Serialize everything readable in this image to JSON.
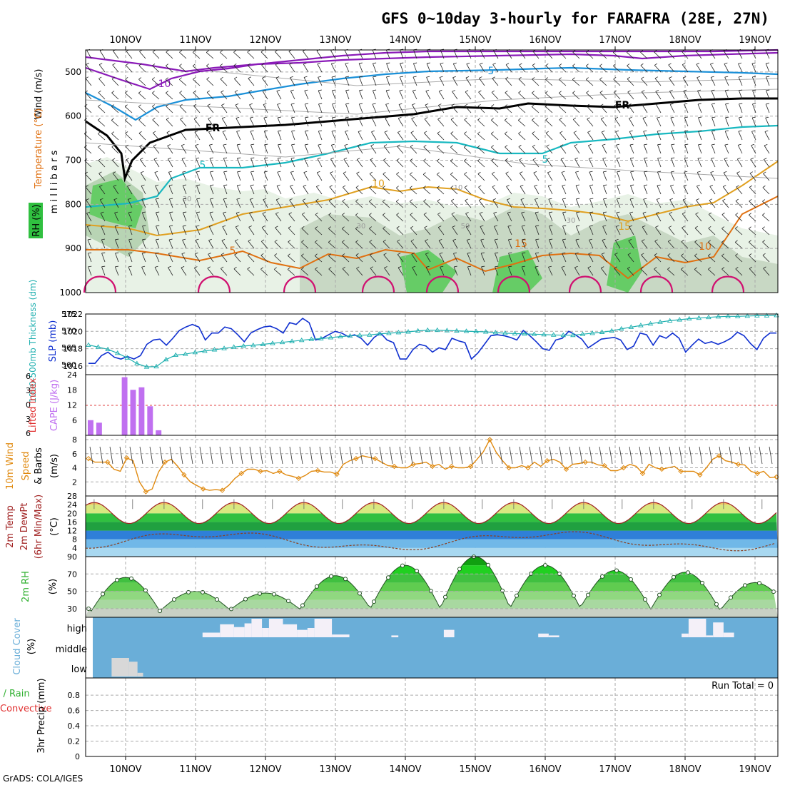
{
  "title": "GFS 0~10day 3-hourly for FARAFRA (28E, 27N)",
  "footer": "GrADS: COLA/IGES",
  "x_axis": {
    "labels": [
      "10NOV",
      "11NOV",
      "12NOV",
      "13NOV",
      "14NOV",
      "15NOV",
      "16NOV",
      "17NOV",
      "18NOV",
      "19NOV"
    ]
  },
  "colors": {
    "temp_cold": "#8a1ab8",
    "temp_cool": "#1a90d8",
    "temp_fr": "#000000",
    "temp_mid": "#18b8c0",
    "temp_warm": "#e0a020",
    "temp_hot": "#e07010",
    "temp_vhot": "#d01070",
    "slp": "#1030d0",
    "thickness": "#20b0b0",
    "cape": "#c070f0",
    "wind10": "#e08a10",
    "temp2m": "#a02020",
    "rh2m": "#30b030",
    "cloud": "#6aaed8"
  },
  "panels": {
    "upper": {
      "ylabels": [
        "Wind (m/s)",
        "Temperature (°C)",
        "m i l l i b a r s",
        "RH (%)"
      ],
      "yticks": [
        "500",
        "600",
        "700",
        "800",
        "900",
        "1000"
      ],
      "contour_labels": [
        "-10",
        "5",
        "FR",
        "FR",
        "5",
        "5",
        "10",
        "10",
        "5",
        "15",
        "10",
        "30",
        "30",
        "30",
        "50",
        "10"
      ]
    },
    "slp": {
      "ylabel_left": "1000-500mb Thickness (dm)",
      "ylabel_right": "SLP (mb)",
      "ticks_left": [
        "575",
        "570",
        "565",
        "560"
      ],
      "ticks_right": [
        "1022",
        "1020",
        "1018",
        "1016"
      ]
    },
    "cape": {
      "ylabel_left": "Lifted Index",
      "ylabel_right": "CAPE (J/kg)",
      "ticks_left": [
        "6",
        "3",
        "0",
        "3",
        "6"
      ],
      "ticks_right": [
        "24",
        "18",
        "12",
        "6"
      ]
    },
    "wind": {
      "ylabels": [
        "10m Wind",
        "Speed",
        "& Barbs",
        "(m/s)"
      ],
      "ticks": [
        "8",
        "6",
        "4",
        "2"
      ]
    },
    "temp": {
      "ylabels": [
        "2m Temp",
        "2m DewPt",
        "(6hr Min/Max)",
        "(°C)"
      ],
      "ticks": [
        "28",
        "24",
        "20",
        "16",
        "12",
        "8",
        "4"
      ]
    },
    "rh": {
      "ylabels": [
        "2m RH",
        "(%)"
      ],
      "ticks": [
        "90",
        "70",
        "50",
        "30"
      ]
    },
    "cloud": {
      "ylabels": [
        "Cloud Cover",
        "(%)"
      ],
      "levels": [
        "high",
        "middle",
        "low"
      ]
    },
    "precip": {
      "ylabels": [
        "Total / Rain",
        "Convective",
        "3hr Precip (mm)"
      ],
      "ticks": [
        "0.8",
        "0.6",
        "0.4",
        "0.2",
        "0"
      ],
      "run_total": "Run Total = 0"
    }
  },
  "chart_data": [
    {
      "type": "line",
      "name": "slp",
      "unit": "mb",
      "ylim": [
        1015,
        1022
      ],
      "values": [
        1016.3,
        1016.3,
        1017.2,
        1017.6,
        1017.0,
        1016.8,
        1017.1,
        1016.8,
        1017.2,
        1018.5,
        1019.0,
        1019.1,
        1018.4,
        1019.2,
        1020.1,
        1020.5,
        1020.8,
        1020.5,
        1019.0,
        1019.8,
        1019.8,
        1020.5,
        1020.3,
        1019.6,
        1018.8,
        1019.8,
        1020.2,
        1020.5,
        1020.6,
        1020.3,
        1019.8,
        1021.0,
        1020.8,
        1021.5,
        1021.0,
        1019.0,
        1019.2,
        1019.6,
        1020.0,
        1019.8,
        1019.4,
        1019.6,
        1019.2,
        1018.4,
        1019.3,
        1019.8,
        1019.0,
        1018.7,
        1016.8,
        1016.8,
        1017.9,
        1018.5,
        1018.3,
        1017.6,
        1018.1,
        1017.9,
        1019.2,
        1018.9,
        1018.7,
        1016.8,
        1017.5,
        1018.5,
        1019.5,
        1019.6,
        1019.5,
        1019.3,
        1019.0,
        1020.1,
        1019.5,
        1018.8,
        1018.0,
        1017.8,
        1019.0,
        1019.2,
        1020.0,
        1019.6,
        1019.1,
        1018.1,
        1018.6,
        1019.1,
        1019.2,
        1019.3,
        1019.0,
        1017.9,
        1018.3,
        1019.8,
        1019.6,
        1018.4,
        1019.5,
        1019.2,
        1019.8,
        1019.2,
        1017.6,
        1018.4,
        1019.1,
        1018.6,
        1018.8,
        1018.5,
        1018.8,
        1019.2,
        1019.9,
        1019.5,
        1018.6,
        1017.9,
        1019.2,
        1019.8,
        1019.8
      ]
    },
    {
      "type": "line",
      "name": "thickness",
      "unit": "dm",
      "ylim": [
        557,
        575
      ],
      "x_step": 1.5,
      "values": [
        565.8,
        565.2,
        564.5,
        563.4,
        562.0,
        560.3,
        559.3,
        559.4,
        561.5,
        562.8,
        563.1,
        563.6,
        564.0,
        564.4,
        564.8,
        565.2,
        565.5,
        565.7,
        566.0,
        566.3,
        566.6,
        566.9,
        567.2,
        567.5,
        567.7,
        568.0,
        568.3,
        568.5,
        568.7,
        568.8,
        569.1,
        569.3,
        569.5,
        569.7,
        570.0,
        570.2,
        570.2,
        570.1,
        570.0,
        569.9,
        569.8,
        569.7,
        569.5,
        569.3,
        569.2,
        569.1,
        569.0,
        568.9,
        568.8,
        568.7,
        568.7,
        569.0,
        569.3,
        569.6,
        570.0,
        570.6,
        571.1,
        571.6,
        572.1,
        572.6,
        573.0,
        573.3,
        573.6,
        573.8,
        574.0,
        574.2,
        574.3,
        574.3,
        574.4,
        574.5,
        574.5,
        574.6
      ]
    },
    {
      "type": "bar",
      "name": "cape",
      "unit": "J/kg",
      "ylim": [
        0,
        24
      ],
      "bars": [
        {
          "i": 0,
          "v": 6
        },
        {
          "i": 1,
          "v": 5
        },
        {
          "i": 4,
          "v": 23
        },
        {
          "i": 5,
          "v": 18
        },
        {
          "i": 6,
          "v": 19
        },
        {
          "i": 7,
          "v": 11.5
        },
        {
          "i": 8,
          "v": 2
        }
      ]
    },
    {
      "type": "line",
      "name": "wind10",
      "unit": "m/s",
      "ylim": [
        0,
        8
      ],
      "values": [
        5.3,
        4.8,
        4.8,
        4.8,
        3.8,
        3.5,
        5.4,
        5.0,
        2.0,
        0.6,
        1.0,
        3.4,
        4.8,
        5.2,
        4.2,
        3.0,
        2.0,
        1.5,
        1.0,
        0.8,
        0.9,
        0.8,
        1.5,
        2.5,
        3.2,
        3.8,
        3.8,
        3.5,
        3.6,
        3.2,
        3.5,
        3.0,
        2.8,
        2.5,
        2.9,
        3.5,
        3.6,
        3.4,
        3.4,
        3.1,
        4.5,
        5.0,
        5.3,
        5.7,
        5.5,
        5.3,
        4.8,
        4.3,
        4.2,
        4.0,
        4.0,
        4.5,
        4.6,
        4.8,
        4.2,
        4.5,
        3.8,
        4.2,
        4.0,
        4.0,
        4.2,
        5.2,
        6.3,
        8.0,
        6.2,
        5.0,
        4.0,
        4.0,
        4.3,
        4.0,
        4.8,
        4.2,
        5.0,
        5.2,
        4.8,
        3.8,
        4.5,
        4.6,
        4.8,
        4.8,
        4.4,
        4.3,
        3.6,
        3.6,
        4.0,
        4.5,
        4.2,
        3.2,
        4.5,
        4.0,
        3.8,
        4.0,
        4.2,
        3.5,
        3.5,
        3.5,
        3.0,
        4.0,
        5.2,
        5.7,
        5.0,
        4.8,
        4.5,
        4.4,
        3.5,
        3.2,
        3.5,
        2.6,
        2.7
      ]
    },
    {
      "type": "area",
      "name": "temp2m",
      "unit": "°C",
      "ylim": [
        0,
        28
      ],
      "period_days": 1,
      "max": 25.0,
      "min": 15.3,
      "dewpoint_min": 2.4,
      "dewpoint_max": 12.0
    },
    {
      "type": "area",
      "name": "rh2m",
      "unit": "%",
      "ylim": [
        20,
        90
      ],
      "peaks": [
        {
          "day": 0,
          "v": 66
        },
        {
          "day": 1,
          "v": 50
        },
        {
          "day": 2,
          "v": 48
        },
        {
          "day": 3,
          "v": 68
        },
        {
          "day": 4,
          "v": 80
        },
        {
          "day": 5,
          "v": 90
        },
        {
          "day": 6,
          "v": 80
        },
        {
          "day": 7,
          "v": 74
        },
        {
          "day": 8,
          "v": 72
        },
        {
          "day": 9,
          "v": 60
        }
      ],
      "troughs": [
        26,
        28,
        29,
        30,
        30,
        30,
        31,
        31,
        28
      ]
    },
    {
      "type": "bar",
      "name": "cloud_high",
      "unit": "%",
      "segments": [
        [
          1.1,
          1.35,
          25
        ],
        [
          1.35,
          1.55,
          70
        ],
        [
          1.55,
          1.7,
          55
        ],
        [
          1.7,
          1.8,
          75
        ],
        [
          1.8,
          1.95,
          100
        ],
        [
          1.95,
          2.05,
          50
        ],
        [
          2.05,
          2.25,
          100
        ],
        [
          2.25,
          2.45,
          70
        ],
        [
          2.45,
          2.6,
          40
        ],
        [
          2.6,
          2.7,
          50
        ],
        [
          2.7,
          2.95,
          100
        ],
        [
          2.95,
          3.2,
          15
        ],
        [
          3.8,
          3.9,
          10
        ],
        [
          4.55,
          4.7,
          40
        ],
        [
          5.9,
          6.05,
          20
        ],
        [
          6.05,
          6.2,
          10
        ],
        [
          7.95,
          8.05,
          20
        ],
        [
          8.05,
          8.3,
          100
        ],
        [
          8.3,
          8.4,
          10
        ],
        [
          8.4,
          8.55,
          80
        ],
        [
          8.55,
          8.7,
          25
        ]
      ]
    },
    {
      "type": "bar",
      "name": "cloud_low",
      "unit": "%",
      "segments": [
        [
          -0.2,
          0.05,
          100
        ],
        [
          0.05,
          0.17,
          80
        ],
        [
          0.17,
          0.25,
          20
        ]
      ]
    },
    {
      "type": "bar",
      "name": "precip",
      "unit": "mm",
      "ylim": [
        0,
        1
      ],
      "values": []
    }
  ]
}
